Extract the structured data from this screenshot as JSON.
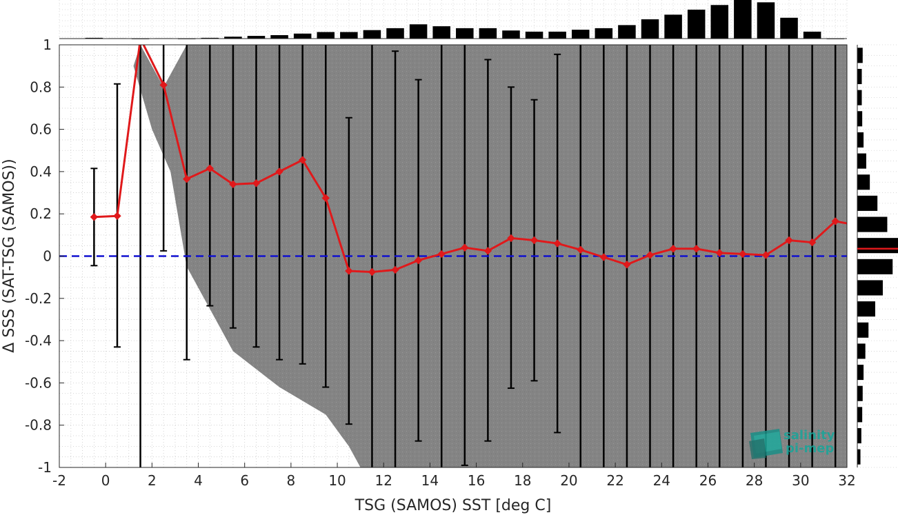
{
  "chart_data": {
    "type": "line",
    "title": "",
    "xlabel": "TSG (SAMOS) SST [deg C]",
    "ylabel": "Δ SSS (SAT-TSG (SAMOS))",
    "xlim": [
      -2,
      32
    ],
    "ylim": [
      -1,
      1
    ],
    "x_ticks": [
      "-2",
      "0",
      "2",
      "4",
      "6",
      "8",
      "10",
      "12",
      "14",
      "16",
      "18",
      "20",
      "22",
      "24",
      "26",
      "28",
      "30",
      "32"
    ],
    "y_ticks": [
      "1",
      "0.8",
      "0.6",
      "0.4",
      "0.2",
      "0",
      "-0.2",
      "-0.4",
      "-0.6",
      "-0.8",
      "-1"
    ],
    "grid": true,
    "reference_line": {
      "y": 0,
      "style": "dashed",
      "color": "#1010d0"
    },
    "series": [
      {
        "type": "line",
        "color": "#e0191b",
        "x": [
          -0.5,
          0.5,
          1.5,
          2.5,
          3.5,
          4.5,
          5.5,
          6.5,
          7.5,
          8.5,
          9.5,
          10.5,
          11.5,
          12.5,
          13.5,
          14.5,
          15.5,
          16.5,
          17.5,
          18.5,
          19.5,
          20.5,
          21.5,
          22.5,
          23.5,
          24.5,
          25.5,
          26.5,
          27.5,
          28.5,
          29.5,
          30.5,
          31.5
        ],
        "y": [
          0.185,
          0.19,
          1.03,
          0.81,
          0.365,
          0.415,
          0.34,
          0.345,
          0.4,
          0.455,
          0.275,
          -0.07,
          -0.075,
          -0.065,
          -0.02,
          0.01,
          0.04,
          0.025,
          0.085,
          0.075,
          0.06,
          0.03,
          -0.005,
          -0.04,
          0.005,
          0.035,
          0.035,
          0.015,
          0.01,
          0.005,
          0.075,
          0.065,
          0.165
        ]
      },
      {
        "type": "errorbar",
        "color": "#000000",
        "x": [
          -0.5,
          0.5,
          1.5,
          2.5,
          3.5,
          4.5,
          5.5,
          6.5,
          7.5,
          8.5,
          9.5,
          10.5,
          11.5,
          12.5,
          13.5,
          14.5,
          15.5,
          16.5,
          17.5,
          18.5,
          19.5,
          20.5,
          21.5,
          22.5,
          23.5,
          24.5,
          25.5,
          26.5,
          27.5,
          28.5,
          29.5,
          30.5,
          31.5
        ],
        "low": [
          -0.045,
          -0.43,
          -1,
          0.025,
          -0.49,
          -0.235,
          -0.34,
          -0.43,
          -0.49,
          -0.51,
          -0.62,
          -0.795,
          -1,
          -1,
          -0.875,
          -1,
          -0.99,
          -0.875,
          -0.625,
          -0.59,
          -0.835,
          -1,
          -1,
          -1,
          -1,
          -1,
          -1,
          -1,
          -1,
          -1,
          -1,
          -1,
          -1
        ],
        "high": [
          0.415,
          0.815,
          1,
          1,
          1,
          1,
          1,
          1,
          1,
          1,
          1,
          0.655,
          1,
          0.97,
          0.835,
          1,
          1,
          0.93,
          0.8,
          0.74,
          0.955,
          1,
          1,
          1,
          1,
          1,
          1,
          1,
          1,
          1,
          1,
          1,
          1
        ]
      }
    ],
    "top_histogram": {
      "bins_x": [
        -0.5,
        0.5,
        1.5,
        2.5,
        3.5,
        4.5,
        5.5,
        6.5,
        7.5,
        8.5,
        9.5,
        10.5,
        11.5,
        12.5,
        13.5,
        14.5,
        15.5,
        16.5,
        17.5,
        18.5,
        19.5,
        20.5,
        21.5,
        22.5,
        23.5,
        24.5,
        25.5,
        26.5,
        27.5,
        28.5,
        29.5,
        30.5,
        31.5
      ],
      "counts": [
        2,
        1,
        0,
        1,
        0,
        2,
        5,
        7,
        9,
        13,
        17,
        17,
        22,
        27,
        37,
        32,
        27,
        27,
        21,
        18,
        18,
        23,
        27,
        35,
        50,
        62,
        75,
        87,
        100,
        94,
        54,
        18,
        0
      ]
    },
    "right_histogram": {
      "bins_y": [
        0.95,
        0.85,
        0.75,
        0.65,
        0.55,
        0.45,
        0.35,
        0.25,
        0.15,
        0.05,
        -0.05,
        -0.15,
        -0.25,
        -0.35,
        -0.45,
        -0.55,
        -0.65,
        -0.75,
        -0.85,
        -0.95
      ],
      "counts": [
        12,
        10,
        10,
        11,
        14,
        20,
        28,
        45,
        67,
        91,
        79,
        57,
        40,
        25,
        18,
        14,
        12,
        11,
        9,
        7
      ],
      "median_y": 0.035,
      "median_color": "#e0191b"
    },
    "logo": {
      "line1": "salinity",
      "line2": "pi-mep"
    }
  }
}
